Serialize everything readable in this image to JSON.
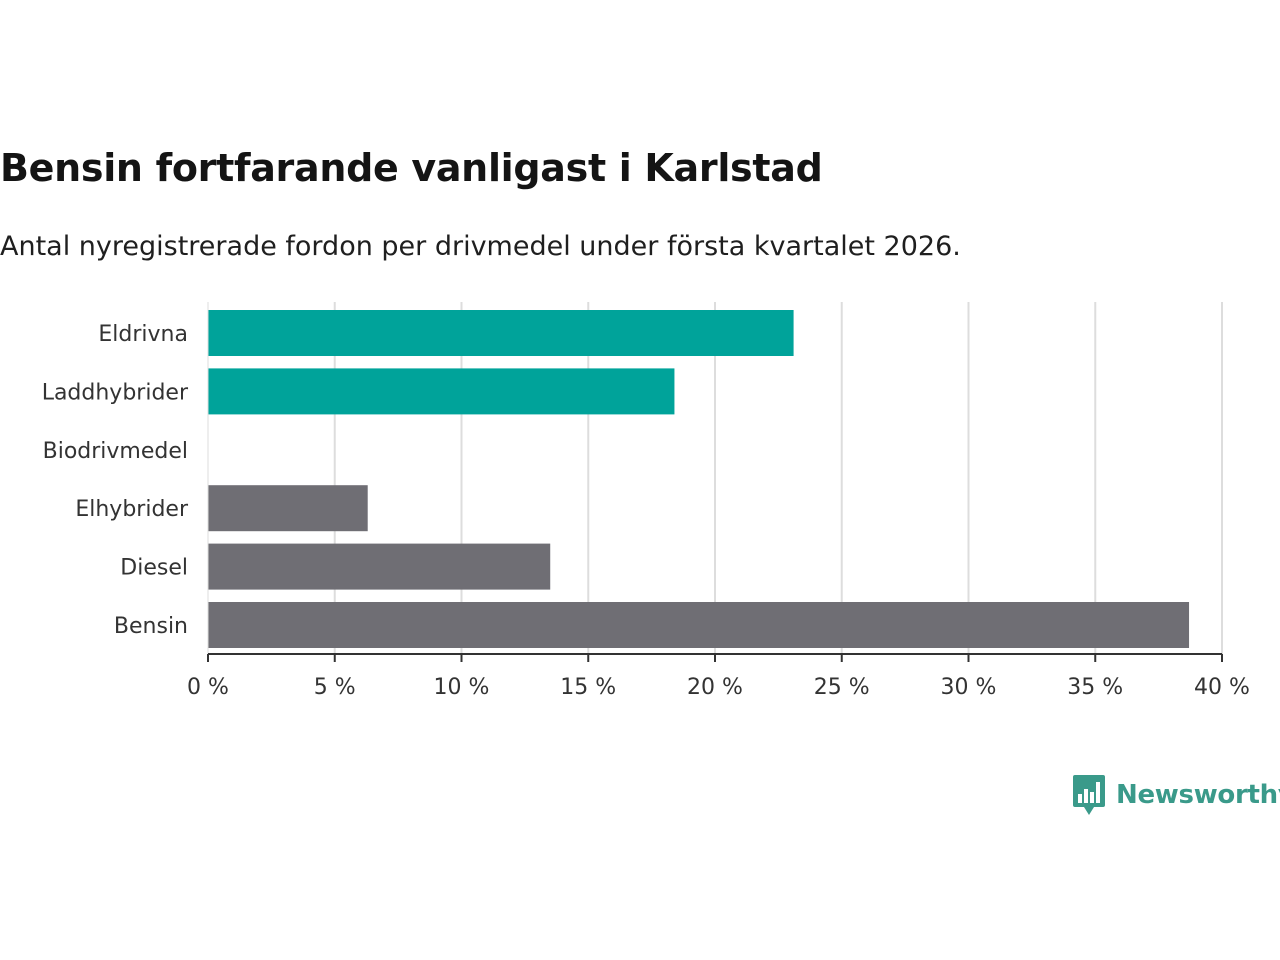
{
  "header": {
    "title": "Bensin fortfarande vanligast i Karlstad",
    "subtitle": "Antal nyregistrerade fordon per drivmedel under första kvartalet 2026."
  },
  "brand": {
    "name": "Newsworthy",
    "icon": "newsworthy-logo-icon",
    "color": "#3a9a8a"
  },
  "colors": {
    "highlight": "#00a39a",
    "default": "#6f6e74",
    "grid": "#dddddd",
    "axis": "#333333"
  },
  "chart_data": {
    "type": "bar",
    "orientation": "horizontal",
    "title": "Bensin fortfarande vanligast i Karlstad",
    "subtitle": "Antal nyregistrerade fordon per drivmedel under första kvartalet 2026.",
    "categories": [
      "Eldrivna",
      "Laddhybrider",
      "Biodrivmedel",
      "Elhybrider",
      "Diesel",
      "Bensin"
    ],
    "values": [
      23.1,
      18.4,
      0,
      6.3,
      13.5,
      38.7
    ],
    "highlight": [
      true,
      true,
      false,
      false,
      false,
      false
    ],
    "xlim": [
      0,
      40
    ],
    "xticks": [
      0,
      5,
      10,
      15,
      20,
      25,
      30,
      35,
      40
    ],
    "xtick_labels": [
      "0 %",
      "5 %",
      "10 %",
      "15 %",
      "20 %",
      "25 %",
      "30 %",
      "35 %",
      "40 %"
    ],
    "xlabel": "",
    "ylabel": "",
    "grid": true
  }
}
